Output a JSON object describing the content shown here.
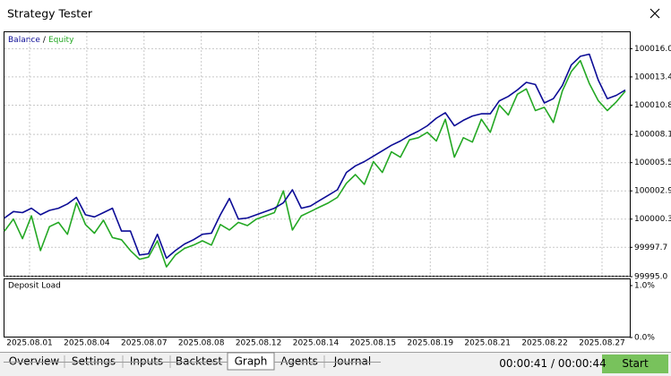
{
  "window_title": "Strategy Tester",
  "chart_data": [
    {
      "type": "line",
      "legend_separator": "/",
      "xtick_labels": [
        "2025.08.01",
        "2025.08.04",
        "2025.08.07",
        "2025.08.08",
        "2025.08.12",
        "2025.08.14",
        "2025.08.15",
        "2025.08.19",
        "2025.08.21",
        "2025.08.22",
        "2025.08.27"
      ],
      "ylim": [
        99995.0,
        100017.6
      ],
      "yticks": [
        {
          "value": 100016,
          "label": "100016.0"
        },
        100013.4,
        100010.8,
        100008.1,
        100005.5,
        100002.9,
        100000.3,
        99997.7,
        {
          "value": 99995,
          "label": "99995.0"
        }
      ],
      "grid": true,
      "series": [
        {
          "name": "Balance",
          "color": "#0c0c96",
          "values": [
            100000.4,
            100001.0,
            100000.9,
            100001.3,
            100000.7,
            100001.1,
            100001.3,
            100001.7,
            100002.3,
            100000.7,
            100000.5,
            100000.9,
            100001.3,
            99999.2,
            99999.2,
            99997.0,
            99997.1,
            99998.9,
            99996.7,
            99997.4,
            99998.0,
            99998.4,
            99998.9,
            99999.0,
            100000.7,
            100002.2,
            100000.3,
            100000.4,
            100000.7,
            100001.0,
            100001.3,
            100001.8,
            100003.0,
            100001.3,
            100001.5,
            100002.0,
            100002.5,
            100003.0,
            100004.6,
            100005.2,
            100005.6,
            100006.1,
            100006.6,
            100007.1,
            100007.5,
            100008.0,
            100008.4,
            100008.9,
            100009.6,
            100010.1,
            100008.9,
            100009.4,
            100009.8,
            100010.0,
            100010.0,
            100011.2,
            100011.6,
            100012.2,
            100012.9,
            100012.7,
            100011.0,
            100011.4,
            100012.6,
            100014.5,
            100015.3,
            100015.5,
            100013.1,
            100011.4,
            100011.7,
            100012.2
          ]
        },
        {
          "name": "Equity",
          "color": "#24a824",
          "values": [
            99999.2,
            100000.3,
            99998.5,
            100000.6,
            99997.4,
            99999.6,
            100000.0,
            99998.9,
            100001.8,
            99999.8,
            99999.0,
            100000.2,
            99998.6,
            99998.4,
            99997.4,
            99996.6,
            99996.8,
            99998.3,
            99995.9,
            99997.0,
            99997.6,
            99997.9,
            99998.3,
            99997.9,
            99999.8,
            99999.3,
            100000.0,
            99999.7,
            100000.3,
            100000.6,
            100000.9,
            100002.9,
            99999.3,
            100000.6,
            100001.0,
            100001.4,
            100001.8,
            100002.3,
            100003.6,
            100004.4,
            100003.5,
            100005.6,
            100004.6,
            100006.5,
            100006.0,
            100007.6,
            100007.8,
            100008.3,
            100007.5,
            100009.5,
            100006.0,
            100007.8,
            100007.4,
            100009.5,
            100008.3,
            100010.8,
            100009.9,
            100011.8,
            100012.3,
            100010.3,
            100010.6,
            100009.2,
            100012.1,
            100013.9,
            100014.9,
            100012.8,
            100011.2,
            100010.3,
            100011.1,
            100012.1
          ]
        }
      ]
    },
    {
      "type": "line",
      "title": "Deposit Load",
      "ylim": [
        0,
        1
      ],
      "yticks": [
        {
          "value": 1,
          "label": "1.0%"
        },
        {
          "value": 0,
          "label": "0.0%"
        }
      ]
    }
  ],
  "tabs": [
    "Overview",
    "Settings",
    "Inputs",
    "Backtest",
    "Graph",
    "Agents",
    "Journal"
  ],
  "timer": "00:00:41 / 00:00:44",
  "button": "Start"
}
